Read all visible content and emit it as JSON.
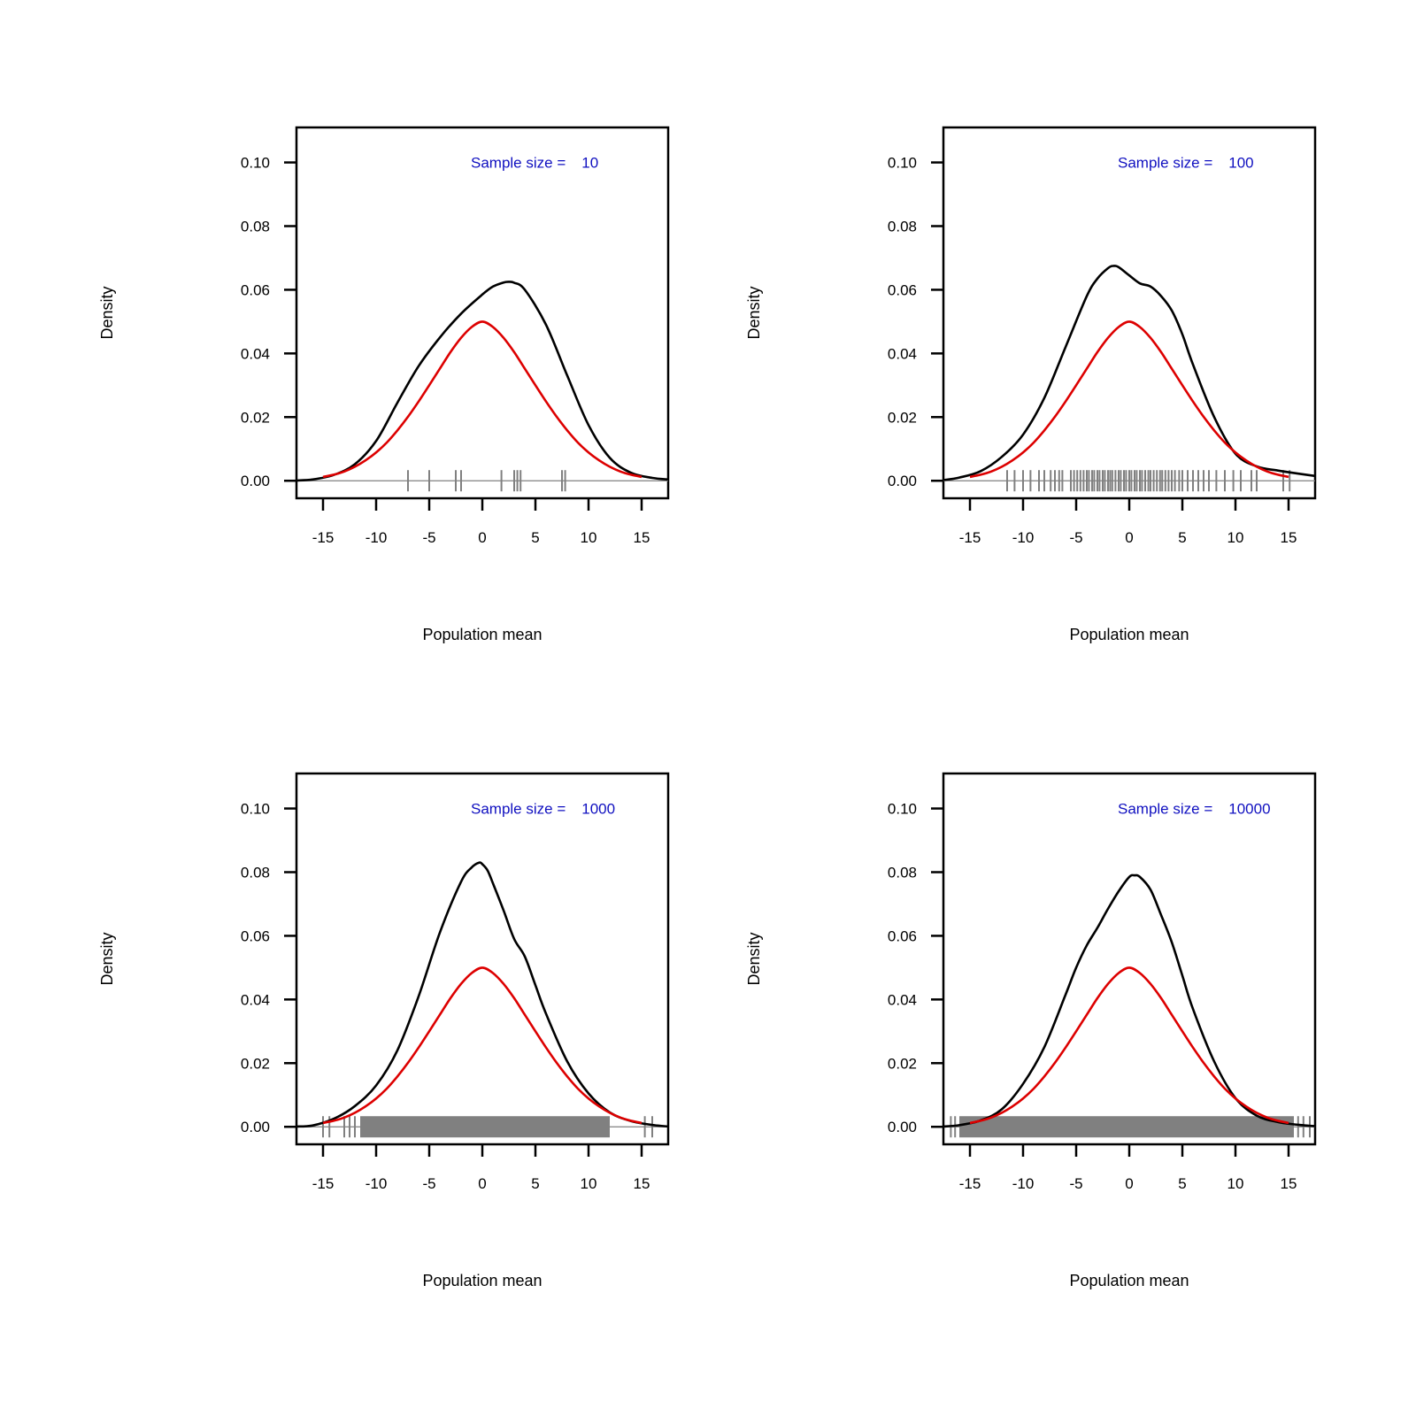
{
  "colors": {
    "empirical": "#000000",
    "theoretical": "#dd0000",
    "rug": "#808080",
    "annotation": "#1010c0"
  },
  "chart_data": [
    {
      "type": "line",
      "xlabel": "Population mean",
      "ylabel": "Density",
      "annotation_label": "Sample size =",
      "annotation_value": "10",
      "xlim": [
        -17.5,
        17.5
      ],
      "ylim": [
        -0.0055,
        0.111
      ],
      "xticks": [
        -15,
        -10,
        -5,
        0,
        5,
        10,
        15
      ],
      "yticks": [
        "0.00",
        "0.02",
        "0.04",
        "0.06",
        "0.08",
        "0.10"
      ],
      "series": [
        {
          "role": "empirical-density",
          "x": [
            -17.5,
            -16,
            -14,
            -12,
            -10,
            -8,
            -6,
            -4,
            -2,
            0,
            1,
            2,
            2.5,
            3,
            4,
            6,
            8,
            10,
            12,
            14,
            16,
            17.5
          ],
          "y": [
            0.0001,
            0.0004,
            0.0018,
            0.0052,
            0.0125,
            0.0245,
            0.036,
            0.045,
            0.0525,
            0.0585,
            0.061,
            0.0623,
            0.0625,
            0.0622,
            0.06,
            0.049,
            0.033,
            0.0175,
            0.0072,
            0.0025,
            0.0009,
            0.0004
          ]
        },
        {
          "role": "theoretical-density",
          "x": [
            -15,
            -14,
            -13,
            -12,
            -11,
            -10,
            -9,
            -8,
            -7,
            -6,
            -5,
            -4,
            -3,
            -2,
            -1,
            0,
            1,
            2,
            3,
            4,
            5,
            6,
            7,
            8,
            9,
            10,
            11,
            12,
            13,
            14,
            15
          ],
          "y": [
            0.0012,
            0.0019,
            0.0029,
            0.0044,
            0.0064,
            0.0089,
            0.012,
            0.0158,
            0.0201,
            0.0249,
            0.03,
            0.0352,
            0.0404,
            0.0449,
            0.0483,
            0.05,
            0.0483,
            0.0449,
            0.0404,
            0.0352,
            0.03,
            0.0249,
            0.0201,
            0.0158,
            0.012,
            0.0089,
            0.0064,
            0.0044,
            0.0029,
            0.0019,
            0.0012
          ]
        }
      ],
      "rug": [
        -7,
        -5,
        -2.5,
        -2,
        1.8,
        3.0,
        3.3,
        3.6,
        7.5,
        7.8
      ]
    },
    {
      "type": "line",
      "xlabel": "Population mean",
      "ylabel": "Density",
      "annotation_label": "Sample size =",
      "annotation_value": "100",
      "xlim": [
        -17.5,
        17.5
      ],
      "ylim": [
        -0.0055,
        0.111
      ],
      "xticks": [
        -15,
        -10,
        -5,
        0,
        5,
        10,
        15
      ],
      "yticks": [
        "0.00",
        "0.02",
        "0.04",
        "0.06",
        "0.08",
        "0.10"
      ],
      "series": [
        {
          "role": "empirical-density",
          "x": [
            -17.5,
            -16,
            -14,
            -12,
            -10,
            -8,
            -6,
            -4,
            -3,
            -2,
            -1.5,
            -1,
            0,
            1,
            2,
            3,
            4,
            5,
            6,
            8,
            10,
            12,
            14,
            16,
            17.5
          ],
          "y": [
            0.0002,
            0.001,
            0.003,
            0.0075,
            0.0145,
            0.026,
            0.042,
            0.058,
            0.0635,
            0.0668,
            0.0675,
            0.0671,
            0.0645,
            0.062,
            0.061,
            0.058,
            0.0535,
            0.046,
            0.0365,
            0.02,
            0.0085,
            0.0045,
            0.0032,
            0.0022,
            0.0015
          ]
        },
        {
          "role": "theoretical-density",
          "x": [
            -15,
            -14,
            -13,
            -12,
            -11,
            -10,
            -9,
            -8,
            -7,
            -6,
            -5,
            -4,
            -3,
            -2,
            -1,
            0,
            1,
            2,
            3,
            4,
            5,
            6,
            7,
            8,
            9,
            10,
            11,
            12,
            13,
            14,
            15
          ],
          "y": [
            0.0012,
            0.0019,
            0.0029,
            0.0044,
            0.0064,
            0.0089,
            0.012,
            0.0158,
            0.0201,
            0.0249,
            0.03,
            0.0352,
            0.0404,
            0.0449,
            0.0483,
            0.05,
            0.0483,
            0.0449,
            0.0404,
            0.0352,
            0.03,
            0.0249,
            0.0201,
            0.0158,
            0.012,
            0.0089,
            0.0064,
            0.0044,
            0.0029,
            0.0019,
            0.0012
          ]
        }
      ],
      "rug": [
        -11.5,
        -10.8,
        -10,
        -9.3,
        -8.5,
        -8,
        -7.4,
        -7,
        -6.6,
        -6.3,
        -5.5,
        -5.2,
        -4.9,
        -4.6,
        -4.3,
        -4,
        -3.8,
        -3.5,
        -3.3,
        -3,
        -2.8,
        -2.5,
        -2.3,
        -2,
        -1.8,
        -1.6,
        -1.3,
        -1,
        -0.8,
        -0.5,
        -0.3,
        0,
        0.2,
        0.5,
        0.7,
        1,
        1.2,
        1.5,
        1.8,
        2,
        2.3,
        2.6,
        2.9,
        3.1,
        3.4,
        3.7,
        4,
        4.3,
        4.7,
        5,
        5.5,
        6,
        6.5,
        7,
        7.5,
        8.2,
        9,
        9.8,
        10.5,
        11.5,
        12,
        14.5,
        15.1
      ]
    },
    {
      "type": "line",
      "xlabel": "Population mean",
      "ylabel": "Density",
      "annotation_label": "Sample size =",
      "annotation_value": "1000",
      "xlim": [
        -17.5,
        17.5
      ],
      "ylim": [
        -0.0055,
        0.111
      ],
      "xticks": [
        -15,
        -10,
        -5,
        0,
        5,
        10,
        15
      ],
      "yticks": [
        "0.00",
        "0.02",
        "0.04",
        "0.06",
        "0.08",
        "0.10"
      ],
      "series": [
        {
          "role": "empirical-density",
          "x": [
            -17.5,
            -16,
            -14,
            -12,
            -10,
            -8,
            -6,
            -4,
            -2,
            -1,
            -0.3,
            0,
            0.5,
            1,
            2,
            3,
            4,
            5,
            6,
            8,
            10,
            12,
            14,
            16,
            17.5
          ],
          "y": [
            0.0001,
            0.0004,
            0.0025,
            0.0065,
            0.013,
            0.024,
            0.041,
            0.061,
            0.077,
            0.0815,
            0.083,
            0.0825,
            0.0805,
            0.0765,
            0.068,
            0.059,
            0.0535,
            0.0445,
            0.0355,
            0.0205,
            0.0105,
            0.0045,
            0.0018,
            0.0006,
            0.0001
          ]
        },
        {
          "role": "theoretical-density",
          "x": [
            -15,
            -14,
            -13,
            -12,
            -11,
            -10,
            -9,
            -8,
            -7,
            -6,
            -5,
            -4,
            -3,
            -2,
            -1,
            0,
            1,
            2,
            3,
            4,
            5,
            6,
            7,
            8,
            9,
            10,
            11,
            12,
            13,
            14,
            15
          ],
          "y": [
            0.0012,
            0.0019,
            0.0029,
            0.0044,
            0.0064,
            0.0089,
            0.012,
            0.0158,
            0.0201,
            0.0249,
            0.03,
            0.0352,
            0.0404,
            0.0449,
            0.0483,
            0.05,
            0.0483,
            0.0449,
            0.0404,
            0.0352,
            0.03,
            0.0249,
            0.0201,
            0.0158,
            0.012,
            0.0089,
            0.0064,
            0.0044,
            0.0029,
            0.0019,
            0.0012
          ]
        }
      ],
      "rug_range": [
        -11.5,
        12
      ],
      "rug": [
        -15,
        -14.4,
        -13,
        -12.5,
        -12,
        15.3,
        16
      ]
    },
    {
      "type": "line",
      "xlabel": "Population mean",
      "ylabel": "Density",
      "annotation_label": "Sample size =",
      "annotation_value": "10000",
      "xlim": [
        -17.5,
        17.5
      ],
      "ylim": [
        -0.0055,
        0.111
      ],
      "xticks": [
        -15,
        -10,
        -5,
        0,
        5,
        10,
        15
      ],
      "yticks": [
        "0.00",
        "0.02",
        "0.04",
        "0.06",
        "0.08",
        "0.10"
      ],
      "series": [
        {
          "role": "empirical-density",
          "x": [
            -17.5,
            -16,
            -14,
            -12,
            -10,
            -8,
            -6,
            -5,
            -4,
            -3,
            -2,
            -1,
            0,
            0.5,
            1,
            2,
            3,
            4,
            5,
            6,
            8,
            10,
            12,
            14,
            16,
            17.5
          ],
          "y": [
            0.0001,
            0.0005,
            0.002,
            0.0055,
            0.0135,
            0.025,
            0.0415,
            0.05,
            0.057,
            0.0625,
            0.0685,
            0.074,
            0.0785,
            0.079,
            0.0785,
            0.0745,
            0.0665,
            0.058,
            0.0475,
            0.037,
            0.0205,
            0.009,
            0.0035,
            0.0015,
            0.0006,
            0.0002
          ]
        },
        {
          "role": "theoretical-density",
          "x": [
            -15,
            -14,
            -13,
            -12,
            -11,
            -10,
            -9,
            -8,
            -7,
            -6,
            -5,
            -4,
            -3,
            -2,
            -1,
            0,
            1,
            2,
            3,
            4,
            5,
            6,
            7,
            8,
            9,
            10,
            11,
            12,
            13,
            14,
            15
          ],
          "y": [
            0.0012,
            0.0019,
            0.0029,
            0.0044,
            0.0064,
            0.0089,
            0.012,
            0.0158,
            0.0201,
            0.0249,
            0.03,
            0.0352,
            0.0404,
            0.0449,
            0.0483,
            0.05,
            0.0483,
            0.0449,
            0.0404,
            0.0352,
            0.03,
            0.0249,
            0.0201,
            0.0158,
            0.012,
            0.0089,
            0.0064,
            0.0044,
            0.0029,
            0.0019,
            0.0012
          ]
        }
      ],
      "rug_range": [
        -16,
        15.5
      ],
      "rug": [
        -16.8,
        -16.4,
        15.9,
        16.4,
        17
      ]
    }
  ]
}
